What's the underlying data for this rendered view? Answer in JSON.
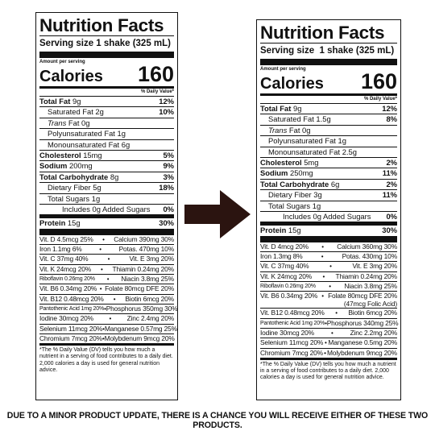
{
  "left": {
    "title": "Nutrition Facts",
    "serving": "Serving size 1 shake (325 mL)",
    "amount_label": "Amount per serving",
    "calories_label": "Calories",
    "calories_value": "160",
    "dv_header": "% Daily Value*",
    "rows": [
      {
        "name": "Total Fat",
        "amount": "9g",
        "pct": "12%",
        "bold": true
      },
      {
        "name": "Saturated Fat",
        "amount": "2g",
        "pct": "10%"
      },
      {
        "name": "Trans",
        "amount": "Fat 0g",
        "pct": ""
      },
      {
        "name": "Polyunsaturated Fat",
        "amount": "1g",
        "pct": ""
      },
      {
        "name": "Monounsaturated Fat",
        "amount": "6g",
        "pct": ""
      },
      {
        "name": "Cholesterol",
        "amount": "15mg",
        "pct": "5%",
        "bold": true
      },
      {
        "name": "Sodium",
        "amount": "200mg",
        "pct": "9%",
        "bold": true
      },
      {
        "name": "Total Carbohydrate",
        "amount": "8g",
        "pct": "3%",
        "bold": true
      },
      {
        "name": "Dietary Fiber",
        "amount": "5g",
        "pct": "18%"
      },
      {
        "name": "Total Sugars",
        "amount": "1g",
        "pct": ""
      },
      {
        "name": "Includes 0g Added Sugars",
        "amount": "",
        "pct": "0%"
      },
      {
        "name": "Protein",
        "amount": "15g",
        "pct": "30%",
        "bold": true
      }
    ],
    "vitamins": [
      [
        "Vit. D 4.5mcg 25%",
        "Calcium 390mg 30%"
      ],
      [
        "Iron 1.1mg 6%",
        "Potas. 470mg 10%"
      ],
      [
        "Vit. C 37mg 40%",
        "Vit. E 3mg 20%"
      ],
      [
        "Vit. K 24mcg 20%",
        "Thiamin 0.24mg 20%"
      ],
      [
        "Riboflavin 0.26mg 20%",
        "Niacin 3.8mg 25%"
      ],
      [
        "Vit. B6 0.34mg 20%",
        "Folate 80mcg DFE 20%"
      ],
      [
        "Vit. B12 0.48mcg 20%",
        "Biotin 6mcg 20%"
      ],
      [
        "Pantothenic Acid 1mg 20%",
        "Phosphorus 350mg 30%"
      ],
      [
        "Iodine 30mcg 20%",
        "Zinc 2.4mg 20%"
      ],
      [
        "Selenium 11mcg 20%",
        "Manganese 0.57mg 25%"
      ],
      [
        "Chromium 7mcg 20%",
        "Molybdenum 9mcg 20%"
      ]
    ],
    "footnote": "*The % Daily Value (DV) tells you how much a nutrient in a serving of food contributes to a daily diet. 2,000 calories a day is used for general nutrition advice."
  },
  "right": {
    "title": "Nutrition Facts",
    "serving": "Serving size  1 shake (325 mL)",
    "amount_label": "Amount per serving",
    "calories_label": "Calories",
    "calories_value": "160",
    "dv_header": "% Daily Value*",
    "rows": [
      {
        "name": "Total Fat",
        "amount": "9g",
        "pct": "12%",
        "bold": true
      },
      {
        "name": "Saturated Fat",
        "amount": "1.5g",
        "pct": "8%"
      },
      {
        "name": "Trans",
        "amount": "Fat 0g",
        "pct": ""
      },
      {
        "name": "Polyunsaturated Fat",
        "amount": "1g",
        "pct": ""
      },
      {
        "name": "Monounsaturated Fat",
        "amount": "2.5g",
        "pct": ""
      },
      {
        "name": "Cholesterol",
        "amount": "5mg",
        "pct": "2%",
        "bold": true
      },
      {
        "name": "Sodium",
        "amount": "250mg",
        "pct": "11%",
        "bold": true
      },
      {
        "name": "Total Carbohydrate",
        "amount": "6g",
        "pct": "2%",
        "bold": true
      },
      {
        "name": "Dietary Fiber",
        "amount": "3g",
        "pct": "11%"
      },
      {
        "name": "Total Sugars",
        "amount": "1g",
        "pct": ""
      },
      {
        "name": "Includes 0g Added Sugars",
        "amount": "",
        "pct": "0%"
      },
      {
        "name": "Protein",
        "amount": "15g",
        "pct": "30%",
        "bold": true
      }
    ],
    "vitamins": [
      [
        "Vit. D 4mcg 20%",
        "Calcium 360mg 30%"
      ],
      [
        "Iron 1.3mg 8%",
        "Potas. 430mg 10%"
      ],
      [
        "Vit. C 37mg 40%",
        "Vit. E 3mg 20%"
      ],
      [
        "Vit. K 24mcg 20%",
        "Thiamin 0.24mg 20%"
      ],
      [
        "Riboflavin 0.26mg 20%",
        "Niacin 3.8mg 25%"
      ],
      [
        "Vit. B6 0.34mg 20%",
        "Folate 80mcg DFE 20%"
      ],
      [
        "Vit. B12 0.48mcg 20%",
        "Biotin 6mcg 20%"
      ],
      [
        "Pantothenic Acid 1mg 20%",
        "Phosphorus 340mg 25%"
      ],
      [
        "Iodine 30mcg 20%",
        "Zinc 2.2mg 20%"
      ],
      [
        "Selenium 11mcg 20%",
        "Manganese 0.5mg 20%"
      ],
      [
        "Chromium 7mcg 20%",
        "Molybdenum 9mcg 20%"
      ]
    ],
    "folic_note": "(47mcg Folic Acid)",
    "footnote": "*The % Daily Value (DV) tells you how much a nutrient in a serving of food contributes to a daily diet. 2,000 calories a day is used for general nutrition advice."
  },
  "arrow": {
    "color": "#2b1410"
  },
  "disclaimer": "DUE TO A MINOR PRODUCT UPDATE, THERE IS A CHANCE YOU WILL RECEIVE EITHER OF THESE TWO PRODUCTS."
}
